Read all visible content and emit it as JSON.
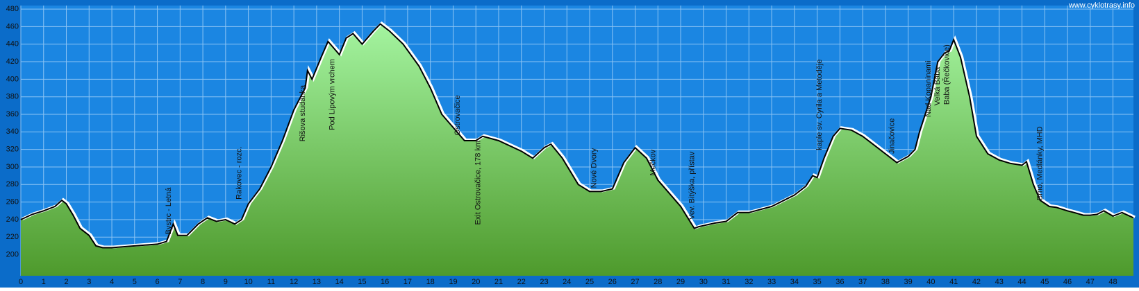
{
  "chart_data": {
    "type": "area",
    "watermark": "www.cyklotrasy.info",
    "x": [
      0,
      0.5,
      1,
      1.5,
      1.8,
      2,
      2.3,
      2.6,
      3,
      3.3,
      3.6,
      4,
      5,
      6,
      6.4,
      6.7,
      6.9,
      7.3,
      7.8,
      8.2,
      8.6,
      9,
      9.4,
      9.7,
      10,
      10.5,
      11,
      11.5,
      12,
      12.5,
      12.6,
      12.8,
      13.2,
      13.5,
      14,
      14.3,
      14.6,
      15,
      15.5,
      15.8,
      16.2,
      16.8,
      17.5,
      18,
      18.5,
      19,
      19.5,
      20,
      20.3,
      21,
      22,
      22.5,
      23,
      23.3,
      23.8,
      24.5,
      25,
      25.5,
      26,
      26.5,
      27,
      27.5,
      28,
      29,
      29.6,
      29.8,
      30.5,
      31,
      31.5,
      32,
      33,
      34,
      34.5,
      34.8,
      35,
      35.3,
      35.7,
      36,
      36.5,
      37,
      37.5,
      38,
      38.5,
      39,
      39.3,
      39.5,
      40,
      40.3,
      40.6,
      40.8,
      41,
      41.3,
      41.7,
      42,
      42.5,
      43,
      43.5,
      44,
      44.2,
      44.5,
      44.8,
      45.2,
      45.5,
      46,
      46.3,
      46.7,
      47,
      47.3,
      47.6,
      48,
      48.4,
      48.9
    ],
    "values": [
      240,
      246,
      250,
      255,
      262,
      258,
      245,
      230,
      222,
      210,
      208,
      208,
      210,
      212,
      215,
      235,
      222,
      222,
      235,
      242,
      238,
      240,
      235,
      240,
      258,
      275,
      300,
      330,
      365,
      390,
      410,
      400,
      425,
      443,
      428,
      447,
      452,
      440,
      455,
      463,
      455,
      440,
      415,
      390,
      360,
      345,
      330,
      330,
      335,
      330,
      318,
      310,
      322,
      326,
      310,
      280,
      272,
      272,
      275,
      305,
      322,
      310,
      285,
      255,
      230,
      232,
      236,
      238,
      248,
      248,
      255,
      268,
      278,
      290,
      288,
      310,
      335,
      344,
      342,
      335,
      325,
      315,
      305,
      312,
      320,
      340,
      380,
      420,
      430,
      432,
      445,
      425,
      380,
      335,
      315,
      308,
      304,
      302,
      306,
      280,
      262,
      255,
      254,
      250,
      248,
      245,
      245,
      246,
      250,
      244,
      248,
      242
    ],
    "annotations": [
      {
        "text": "Bystrc - Letná",
        "x": 6.5,
        "y": 223
      },
      {
        "text": "Rakovec - rozc.",
        "x": 9.6,
        "y": 263
      },
      {
        "text": "Rišova studánka",
        "x": 12.4,
        "y": 329
      },
      {
        "text": "Pod Lipovým vrchem",
        "x": 13.7,
        "y": 342
      },
      {
        "text": "Ostrovačice",
        "x": 19.2,
        "y": 336
      },
      {
        "text": "Exit Ostrovačice, 178 km",
        "x": 20.1,
        "y": 234
      },
      {
        "text": "Nové Dvory",
        "x": 25.2,
        "y": 276
      },
      {
        "text": "Mečkov",
        "x": 27.8,
        "y": 290
      },
      {
        "text": "Vev. Bitýška, přístav",
        "x": 29.5,
        "y": 240
      },
      {
        "text": "kaple sv. Cyrila a Metoděje",
        "x": 35.1,
        "y": 319
      },
      {
        "text": "Jinačovice",
        "x": 38.3,
        "y": 315
      },
      {
        "text": "Nad Kopaninami",
        "x": 39.9,
        "y": 357
      },
      {
        "text": "Velká Baba",
        "x": 40.3,
        "y": 370
      },
      {
        "text": "Baba (Řečkovice)",
        "x": 40.7,
        "y": 371
      },
      {
        "text": "Brno, Medlánky, MHD",
        "x": 44.8,
        "y": 262
      }
    ],
    "xlim": [
      0,
      48.9
    ],
    "ylim": [
      176,
      484
    ],
    "xticks": [
      0,
      1,
      2,
      3,
      4,
      5,
      6,
      7,
      8,
      9,
      10,
      11,
      12,
      13,
      14,
      15,
      16,
      17,
      18,
      19,
      20,
      21,
      22,
      23,
      24,
      25,
      26,
      27,
      28,
      29,
      30,
      31,
      32,
      33,
      34,
      35,
      36,
      37,
      38,
      39,
      40,
      41,
      42,
      43,
      44,
      45,
      46,
      47,
      48
    ],
    "yticks": [
      200,
      220,
      240,
      260,
      280,
      300,
      320,
      340,
      360,
      380,
      400,
      420,
      440,
      460,
      480
    ],
    "grid": true
  }
}
